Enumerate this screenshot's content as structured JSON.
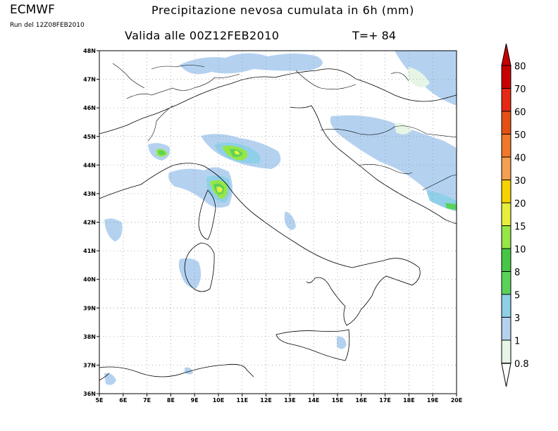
{
  "header": {
    "model": "ECMWF",
    "run": "Run del 12Z08FEB2010",
    "title": "Precipitazione nevosa cumulata in 6h (mm)",
    "valid": "Valida alle 00Z12FEB2010",
    "step": "T=+ 84"
  },
  "map": {
    "lon_range": [
      5,
      20
    ],
    "lat_range": [
      36,
      48
    ],
    "x_ticks": [
      "5E",
      "6E",
      "7E",
      "8E",
      "9E",
      "10E",
      "11E",
      "12E",
      "13E",
      "14E",
      "15E",
      "16E",
      "17E",
      "18E",
      "19E",
      "20E"
    ],
    "y_ticks": [
      "48N",
      "47N",
      "46N",
      "45N",
      "44N",
      "43N",
      "42N",
      "41N",
      "40N",
      "39N",
      "38N",
      "37N",
      "36N"
    ],
    "grid": "dotted"
  },
  "colorbar": {
    "levels": [
      "0.8",
      "1",
      "3",
      "5",
      "8",
      "10",
      "15",
      "20",
      "30",
      "40",
      "50",
      "60",
      "70",
      "80"
    ],
    "colors": [
      "#ffffff",
      "#e6f5e6",
      "#b4d2f0",
      "#8fd0e8",
      "#5ad25a",
      "#46c846",
      "#96e646",
      "#e6f03c",
      "#f5d200",
      "#f5a050",
      "#f07828",
      "#e65014",
      "#e62814",
      "#c80000",
      "#c80000"
    ]
  }
}
